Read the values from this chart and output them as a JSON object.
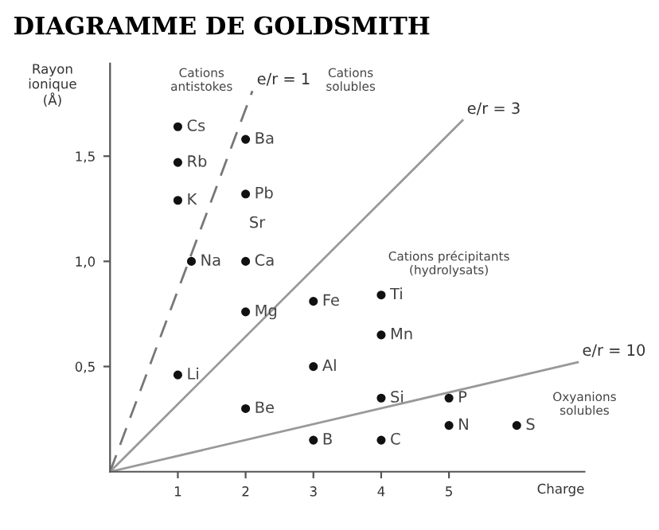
{
  "chart_data": {
    "type": "scatter",
    "title": "DIAGRAMME DE GOLDSMITH",
    "xlabel": "Charge",
    "ylabel": "Rayon\nionique\n(Å)",
    "xlim": [
      0,
      7
    ],
    "ylim": [
      0,
      1.94
    ],
    "xticks": [
      1,
      2,
      3,
      4,
      5
    ],
    "yticks": [
      {
        "value": 0.5,
        "label": "0,5"
      },
      {
        "value": 1.0,
        "label": "1,0"
      },
      {
        "value": 1.5,
        "label": "1,5"
      }
    ],
    "grid": false,
    "legend": false,
    "series": [
      {
        "color": "#111111",
        "marker": "circle",
        "x": [
          1,
          1,
          1,
          1.2,
          1,
          2,
          2,
          2,
          2,
          3,
          4,
          4,
          3,
          2,
          4,
          5,
          5,
          6,
          3,
          4
        ],
        "values": [
          1.64,
          1.47,
          1.29,
          1.0,
          0.46,
          1.58,
          1.32,
          1.0,
          0.76,
          0.81,
          0.84,
          0.65,
          0.5,
          0.3,
          0.35,
          0.35,
          0.22,
          0.22,
          0.15,
          0.15
        ],
        "value_labels": [
          "Cs",
          "Rb",
          "K",
          "Na",
          "Li",
          "Ba",
          "Pb",
          "Ca",
          "Mg",
          "Fe",
          "Ti",
          "Mn",
          "Al",
          "Be",
          "Si",
          "P",
          "N",
          "S",
          "B",
          "C"
        ]
      },
      {
        "type": "line",
        "name": "e/r = 1",
        "color": "#777777",
        "line_style": "dashed",
        "marker": "none",
        "x": [
          0,
          2.1
        ],
        "values": [
          0,
          1.81
        ]
      },
      {
        "type": "line",
        "name": "e/r = 3",
        "color": "#999999",
        "line_style": "solid",
        "marker": "none",
        "x": [
          0,
          5.2
        ],
        "values": [
          0,
          1.67
        ]
      },
      {
        "type": "line",
        "name": "e/r = 10",
        "color": "#999999",
        "line_style": "solid",
        "marker": "none",
        "x": [
          0,
          6.9
        ],
        "values": [
          0,
          0.52
        ]
      }
    ],
    "annotations": [
      "Cations\nantistokes",
      "Cations\nsolubles",
      "Cations précipitants\n(hydrolysats)",
      "Oxyanions\nsolubles",
      "Sr"
    ]
  }
}
